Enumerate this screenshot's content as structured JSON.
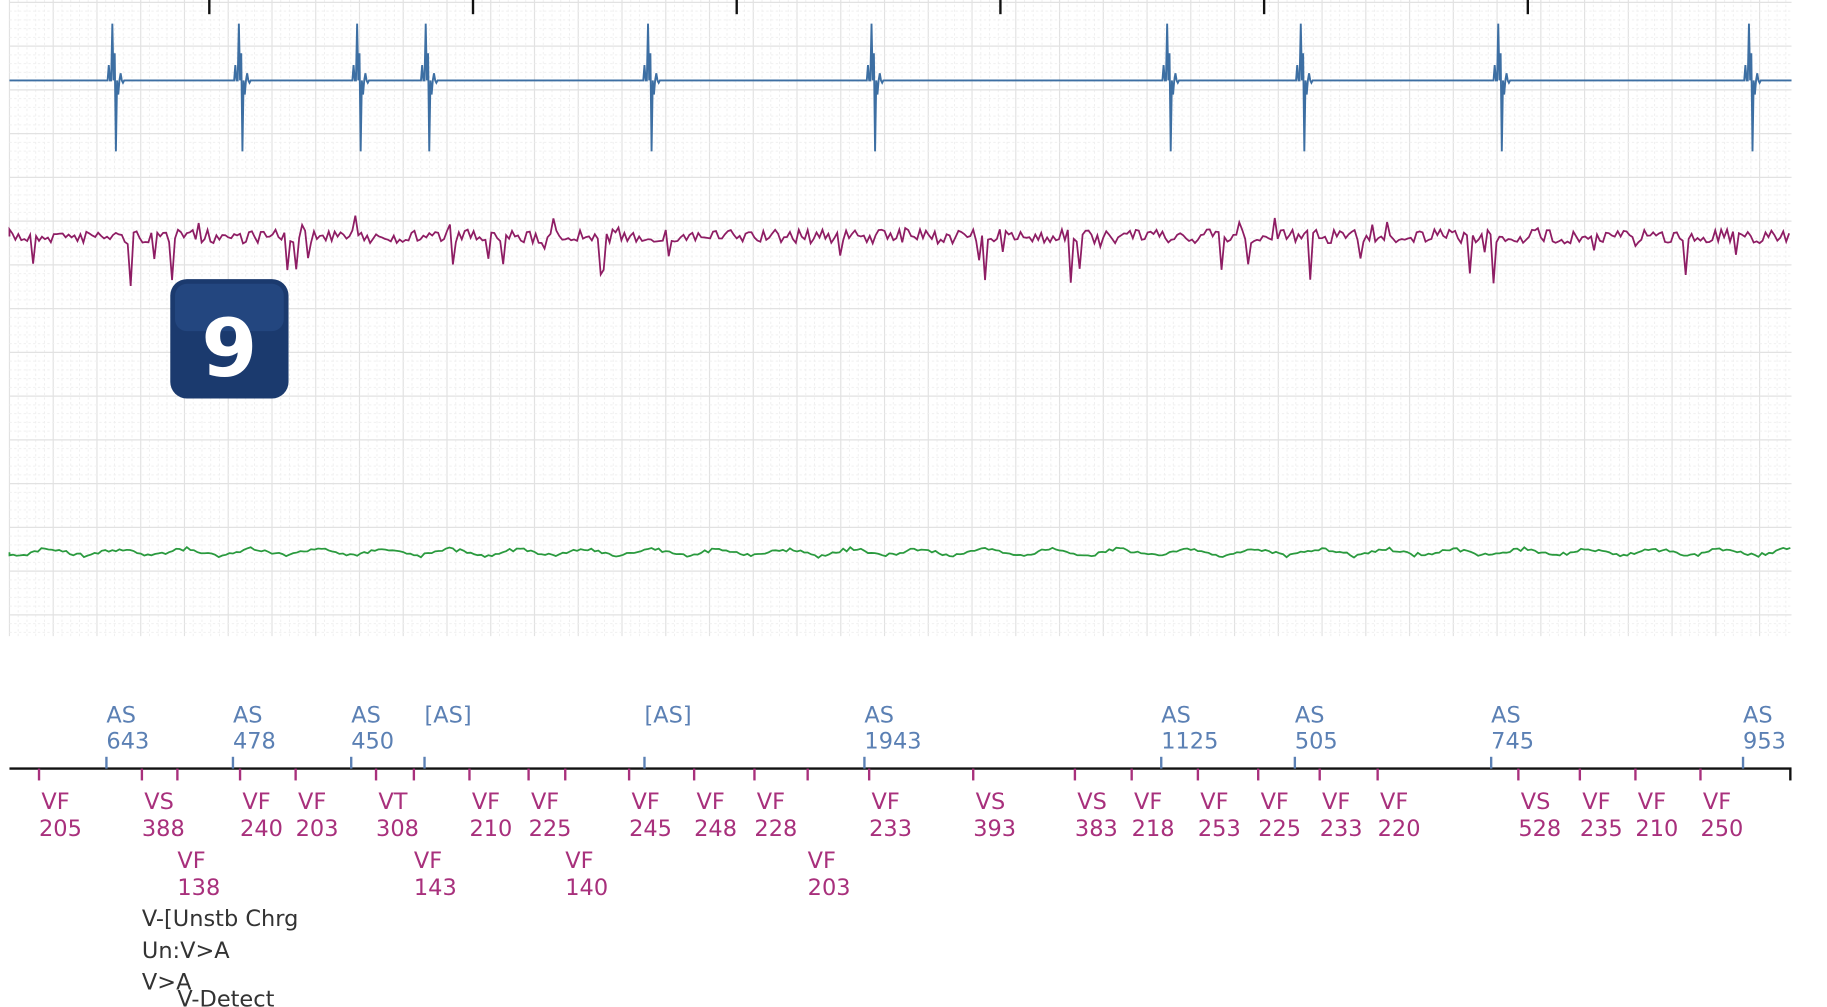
{
  "badge": "9",
  "atrial_markers": [
    {
      "label": "AS",
      "interval": 643
    },
    {
      "label": "AS",
      "interval": 478
    },
    {
      "label": "AS",
      "interval": 450
    },
    {
      "label": "[AS]"
    },
    {
      "label": "[AS]"
    },
    {
      "label": "AS",
      "interval": 1943
    },
    {
      "label": "AS",
      "interval": 1125
    },
    {
      "label": "AS",
      "interval": 505
    },
    {
      "label": "AS",
      "interval": 745
    },
    {
      "label": "AS",
      "interval": 953
    }
  ],
  "ventricular_markers": [
    {
      "label": "VF",
      "interval": 205
    },
    {
      "label": "VS",
      "interval": 388
    },
    {
      "label": "VF",
      "interval": 138
    },
    {
      "label": "VF",
      "interval": 240
    },
    {
      "label": "VF",
      "interval": 203
    },
    {
      "label": "VT",
      "interval": 308
    },
    {
      "label": "VF",
      "interval": 143
    },
    {
      "label": "VF",
      "interval": 210
    },
    {
      "label": "VF",
      "interval": 225
    },
    {
      "label": "VF",
      "interval": 140
    },
    {
      "label": "VF",
      "interval": 245
    },
    {
      "label": "VF",
      "interval": 248
    },
    {
      "label": "VF",
      "interval": 228
    },
    {
      "label": "VF",
      "interval": 203
    },
    {
      "label": "VF",
      "interval": 233
    },
    {
      "label": "VS",
      "interval": 393
    },
    {
      "label": "VS",
      "interval": 383
    },
    {
      "label": "VF",
      "interval": 218
    },
    {
      "label": "VF",
      "interval": 253
    },
    {
      "label": "VF",
      "interval": 225
    },
    {
      "label": "VF",
      "interval": 233
    },
    {
      "label": "VF",
      "interval": 220
    },
    {
      "label": "VS",
      "interval": 528
    },
    {
      "label": "VF",
      "interval": 235
    },
    {
      "label": "VF",
      "interval": 210
    },
    {
      "label": "VF",
      "interval": 250
    }
  ],
  "annotations": [
    "V-[Unstb  Chrg",
    "Un:V>A",
    "V>A",
    "V-Detect"
  ]
}
